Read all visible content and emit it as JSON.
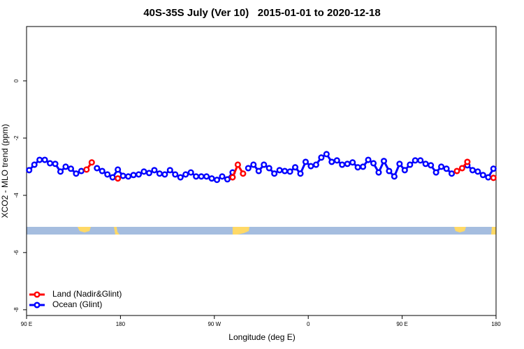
{
  "chart_data": {
    "type": "line",
    "title": "40S-35S July (Ver 10)   2015-01-01 to 2020-12-18",
    "x_label": "Longitude (deg E)",
    "y_label": "XCO2 - MLO trend (ppm)",
    "x": [
      92.5,
      97.5,
      102.5,
      107.5,
      112.5,
      117.5,
      122.5,
      127.5,
      132.5,
      137.5,
      142.5,
      147.5,
      152.5,
      157.5,
      162.5,
      167.5,
      172.5,
      177.5,
      182.5,
      187.5,
      192.5,
      197.5,
      202.5,
      207.5,
      212.5,
      217.5,
      222.5,
      227.5,
      232.5,
      237.5,
      242.5,
      247.5,
      252.5,
      257.5,
      262.5,
      267.5,
      272.5,
      277.5,
      282.5,
      287.5,
      292.5,
      297.5,
      302.5,
      307.5,
      312.5,
      317.5,
      322.5,
      327.5,
      332.5,
      337.5,
      342.5,
      347.5,
      352.5,
      357.5,
      362.5,
      367.5,
      372.5,
      377.5,
      382.5,
      387.5,
      392.5,
      397.5,
      402.5,
      407.5,
      412.5,
      417.5,
      422.5,
      427.5,
      432.5,
      437.5,
      442.5,
      447.5,
      452.5,
      457.5,
      462.5,
      467.5,
      472.5,
      477.5,
      482.5,
      487.5,
      492.5,
      497.5,
      502.5,
      507.5,
      512.5,
      517.5,
      522.5,
      527.5,
      532.5,
      537.5
    ],
    "series": [
      {
        "name": "Land (Nadir&Glint)",
        "color": "#ff0000",
        "values": [
          null,
          null,
          null,
          null,
          null,
          null,
          null,
          null,
          null,
          null,
          null,
          -3.1,
          -2.85,
          null,
          null,
          null,
          null,
          -3.41,
          null,
          null,
          null,
          null,
          null,
          null,
          null,
          null,
          null,
          null,
          null,
          null,
          null,
          null,
          null,
          null,
          null,
          null,
          null,
          null,
          null,
          -3.37,
          -2.93,
          -3.24,
          null,
          null,
          null,
          null,
          null,
          null,
          null,
          null,
          null,
          null,
          null,
          null,
          null,
          null,
          null,
          null,
          null,
          null,
          null,
          null,
          null,
          null,
          null,
          null,
          null,
          null,
          null,
          null,
          null,
          null,
          null,
          null,
          null,
          null,
          null,
          null,
          null,
          null,
          null,
          null,
          -3.15,
          -3.05,
          -2.83,
          null,
          null,
          null,
          null,
          -3.39
        ]
      },
      {
        "name": "Ocean (Glint)",
        "color": "#0000ff",
        "values": [
          -3.12,
          -2.93,
          -2.76,
          -2.76,
          -2.88,
          -2.9,
          -3.17,
          -3.0,
          -3.07,
          -3.24,
          -3.15,
          null,
          null,
          -3.05,
          -3.15,
          -3.27,
          -3.37,
          -3.1,
          -3.32,
          -3.34,
          -3.29,
          -3.27,
          -3.17,
          -3.22,
          -3.12,
          -3.24,
          -3.27,
          -3.12,
          -3.27,
          -3.37,
          -3.27,
          -3.2,
          -3.34,
          -3.34,
          -3.34,
          -3.41,
          -3.46,
          -3.34,
          -3.44,
          -3.2,
          null,
          null,
          -3.05,
          -2.93,
          -3.15,
          -2.93,
          -3.05,
          -3.24,
          -3.12,
          -3.15,
          -3.17,
          -3.02,
          -3.24,
          -2.83,
          -2.98,
          -2.93,
          -2.68,
          -2.56,
          -2.83,
          -2.78,
          -2.93,
          -2.9,
          -2.85,
          -3.02,
          -3.0,
          -2.76,
          -2.88,
          -3.2,
          -2.8,
          -3.15,
          -3.34,
          -2.9,
          -3.12,
          -2.93,
          -2.78,
          -2.78,
          -2.9,
          -2.95,
          -3.2,
          -3.0,
          -3.07,
          -3.24,
          null,
          null,
          -2.95,
          -3.12,
          -3.17,
          -3.29,
          -3.37,
          -3.07
        ]
      }
    ],
    "xlim": [
      90,
      540
    ],
    "xticks": [
      {
        "value": 90,
        "label": "90 E"
      },
      180,
      {
        "value": 270,
        "label": "90 W"
      },
      {
        "value": 360,
        "label": "0"
      },
      {
        "value": 450,
        "label": "90 E"
      },
      {
        "value": 540,
        "label": "180"
      }
    ],
    "ylim": [
      -8.2,
      1.9
    ],
    "yticks": [
      -8,
      -6,
      -4,
      -2,
      0
    ],
    "grid": false,
    "legend": "bottom-left"
  }
}
